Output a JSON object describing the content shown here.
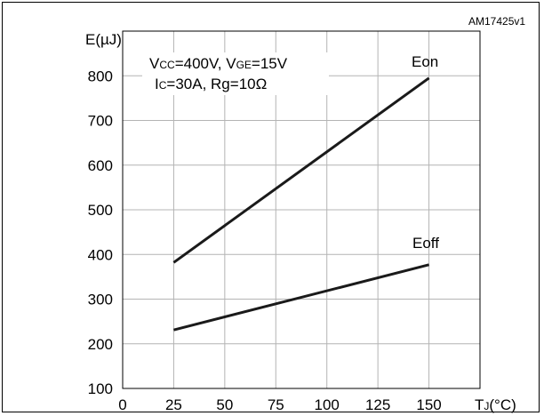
{
  "chart_data": {
    "type": "line",
    "figure_id": "AM17425v1",
    "ylabel": "E(µJ)",
    "xlabel_main": "T",
    "xlabel_sub": "J",
    "xlabel_unit": "(°C)",
    "x_ticks": [
      "0",
      "25",
      "50",
      "75",
      "100",
      "125",
      "150"
    ],
    "y_ticks": [
      "100",
      "200",
      "300",
      "400",
      "500",
      "600",
      "700",
      "800"
    ],
    "xlim": [
      0,
      175
    ],
    "ylim": [
      100,
      900
    ],
    "grid": true,
    "conditions": {
      "vcc_prefix": "V",
      "vcc_sub": "CC",
      "vcc_value": "=400V, ",
      "vge_prefix": "V",
      "vge_sub": "GE",
      "vge_value": "=15V",
      "ic_prefix": "I",
      "ic_sub": "C",
      "ic_value": "=30A, Rg=10Ω"
    },
    "series": [
      {
        "name": "Eon",
        "x": [
          25,
          150
        ],
        "y": [
          382,
          795
        ],
        "color": "#1a1a1a"
      },
      {
        "name": "Eoff",
        "x": [
          25,
          150
        ],
        "y": [
          231,
          377
        ],
        "color": "#1a1a1a"
      }
    ]
  }
}
